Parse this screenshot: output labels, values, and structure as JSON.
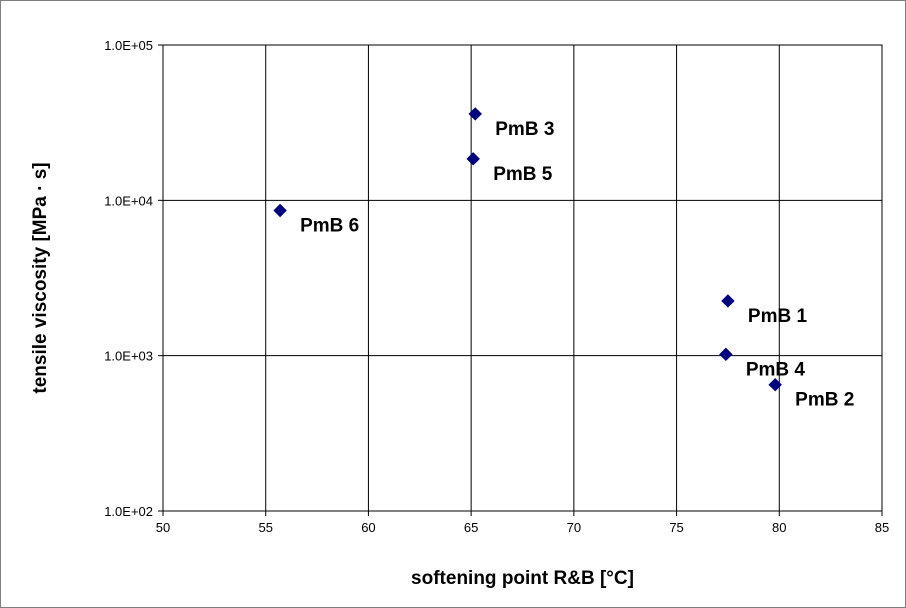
{
  "chart_data": {
    "type": "scatter",
    "xlabel": "softening point R&B [°C]",
    "ylabel": "tensile viscosity [MPa · s]",
    "xlim": [
      50,
      85
    ],
    "ylim": [
      100,
      100000
    ],
    "yscale": "log",
    "grid": true,
    "x_ticks": [
      50,
      55,
      60,
      65,
      70,
      75,
      80,
      85
    ],
    "x_tick_labels": [
      "50",
      "55",
      "60",
      "65",
      "70",
      "75",
      "80",
      "85"
    ],
    "y_ticks": [
      100,
      1000,
      10000,
      100000
    ],
    "y_tick_labels": [
      "1.0E+02",
      "1.0E+03",
      "1.0E+04",
      "1.0E+05"
    ],
    "marker_color": "#000080",
    "points": [
      {
        "label": "PmB 1",
        "x": 77.5,
        "y": 2250
      },
      {
        "label": "PmB 2",
        "x": 79.8,
        "y": 650
      },
      {
        "label": "PmB 3",
        "x": 65.2,
        "y": 36000
      },
      {
        "label": "PmB 4",
        "x": 77.4,
        "y": 1020
      },
      {
        "label": "PmB 5",
        "x": 65.1,
        "y": 18500
      },
      {
        "label": "PmB 6",
        "x": 55.7,
        "y": 8600
      }
    ]
  }
}
